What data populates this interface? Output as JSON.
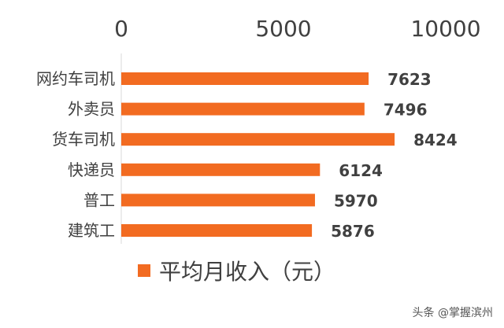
{
  "chart_data": {
    "type": "bar",
    "orientation": "horizontal",
    "categories": [
      "网约车司机",
      "外卖员",
      "货车司机",
      "快递员",
      "普工",
      "建筑工"
    ],
    "series": [
      {
        "name": "平均月收入（元）",
        "values": [
          7623,
          7496,
          8424,
          6124,
          5970,
          5876
        ],
        "color": "#f26b21"
      }
    ],
    "xaxis_position": "top",
    "xticks": [
      0,
      5000,
      10000
    ],
    "xlim": [
      0,
      10000
    ],
    "grid": false,
    "legend_position": "bottom",
    "data_labels": [
      "7623",
      "7496",
      "8424",
      "6124",
      "5970",
      "5876"
    ]
  },
  "watermark": "头条 @掌握滨州"
}
